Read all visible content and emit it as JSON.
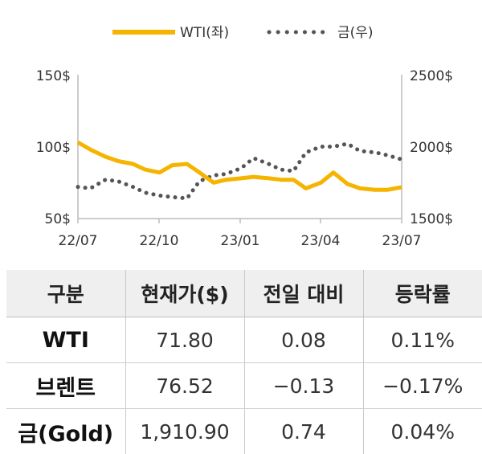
{
  "colors": {
    "wti": "#f5b400",
    "gold": "#555555",
    "axis": "#bcbcbc"
  },
  "chart_data": {
    "type": "line",
    "legend_position": "top-center",
    "grid": false,
    "x_ticks": [
      "22/07",
      "22/10",
      "23/01",
      "23/04",
      "23/07"
    ],
    "y_left": {
      "ticks": [
        "150$",
        "100$",
        "50$"
      ],
      "lim": [
        50,
        150
      ]
    },
    "y_right": {
      "ticks": [
        "2500$",
        "2000$",
        "1500$"
      ],
      "lim": [
        1500,
        2500
      ]
    },
    "series": [
      {
        "name": "WTI(좌)",
        "axis": "left",
        "style": "solid",
        "x": [
          "2022-07-01",
          "2022-07-15",
          "2022-08-01",
          "2022-08-15",
          "2022-09-01",
          "2022-09-15",
          "2022-10-01",
          "2022-10-15",
          "2022-11-01",
          "2022-11-15",
          "2022-12-01",
          "2022-12-15",
          "2023-01-01",
          "2023-01-15",
          "2023-02-01",
          "2023-02-15",
          "2023-03-01",
          "2023-03-15",
          "2023-04-01",
          "2023-04-15",
          "2023-05-01",
          "2023-05-15",
          "2023-06-01",
          "2023-06-15",
          "2023-07-01"
        ],
        "y": [
          103,
          98,
          93,
          90,
          88,
          84,
          82,
          87,
          88,
          82,
          75,
          77,
          78,
          79,
          78,
          77,
          77,
          71,
          75,
          82,
          74,
          71,
          70,
          70,
          71.8
        ]
      },
      {
        "name": "금(우)",
        "axis": "right",
        "style": "dotted",
        "x": [
          "2022-07-01",
          "2022-07-15",
          "2022-08-01",
          "2022-08-15",
          "2022-09-01",
          "2022-09-15",
          "2022-10-01",
          "2022-10-15",
          "2022-11-01",
          "2022-11-15",
          "2022-12-01",
          "2022-12-15",
          "2023-01-01",
          "2023-01-15",
          "2023-02-01",
          "2023-02-15",
          "2023-03-01",
          "2023-03-15",
          "2023-04-01",
          "2023-04-15",
          "2023-05-01",
          "2023-05-15",
          "2023-06-01",
          "2023-06-15",
          "2023-07-01"
        ],
        "y": [
          1720,
          1710,
          1770,
          1760,
          1720,
          1680,
          1660,
          1650,
          1640,
          1760,
          1800,
          1810,
          1850,
          1920,
          1880,
          1840,
          1830,
          1960,
          2000,
          2000,
          2020,
          1970,
          1960,
          1940,
          1911
        ]
      }
    ]
  },
  "table": {
    "headers": [
      "구분",
      "현재가($)",
      "전일 대비",
      "등락률"
    ],
    "rows": [
      {
        "label": "WTI",
        "price": "71.80",
        "change": "0.08",
        "rate": "0.11%"
      },
      {
        "label": "브렌트",
        "price": "76.52",
        "change": "−0.13",
        "rate": "−0.17%"
      },
      {
        "label": "금(Gold)",
        "price": "1,910.90",
        "change": "0.74",
        "rate": "0.04%"
      }
    ]
  }
}
